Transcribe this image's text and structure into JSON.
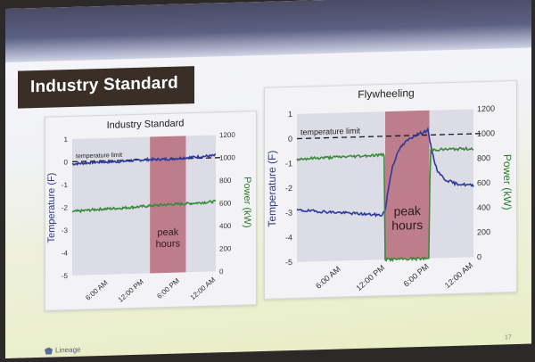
{
  "slide": {
    "title": "Industry Standard",
    "logo_text": "Lineage",
    "page_number": "17"
  },
  "chart_data": [
    {
      "type": "line",
      "title": "Industry Standard",
      "ylabel": "Temperature (F)",
      "y2label": "Power (kW)",
      "xticks": [
        "6:00 AM",
        "12:00 PM",
        "6:00 PM",
        "12:00 AM"
      ],
      "ylim": [
        -5,
        1
      ],
      "yticks": [
        "1",
        "0",
        "-1",
        "-2",
        "-3",
        "-4",
        "-5"
      ],
      "y2lim": [
        0,
        1200
      ],
      "y2ticks": [
        "1200",
        "1000",
        "800",
        "600",
        "400",
        "200",
        "0"
      ],
      "threshold_label": "temperature limit",
      "threshold_value": 0,
      "highlight": {
        "label_line1": "peak",
        "label_line2": "hours",
        "x_from": 13,
        "x_to": 19
      },
      "series": [
        {
          "axis": "left",
          "color": "#2b3aa0",
          "x": [
            0,
            4,
            8,
            12,
            16,
            20,
            24
          ],
          "values": [
            -0.1,
            -0.05,
            -0.05,
            0,
            0,
            0.05,
            0.1
          ]
        },
        {
          "axis": "right",
          "color": "#3a8a3a",
          "x": [
            0,
            4,
            8,
            12,
            16,
            20,
            24
          ],
          "values": [
            560,
            575,
            580,
            590,
            600,
            605,
            615
          ]
        }
      ],
      "grid": false
    },
    {
      "type": "line",
      "title": "Flywheeling",
      "ylabel": "Temperature (F)",
      "y2label": "Power (kW)",
      "xticks": [
        "6:00 AM",
        "12:00 PM",
        "6:00 PM",
        "12:00 AM"
      ],
      "ylim": [
        -5,
        1
      ],
      "yticks": [
        "1",
        "0",
        "-1",
        "-2",
        "-3",
        "-4",
        "-5"
      ],
      "y2lim": [
        0,
        1200
      ],
      "y2ticks": [
        "1200",
        "1000",
        "800",
        "600",
        "400",
        "200",
        "0"
      ],
      "threshold_label": "temperature limit",
      "threshold_value": 0,
      "highlight": {
        "label_line1": "peak",
        "label_line2": "hours",
        "x_from": 12,
        "x_to": 18
      },
      "series": [
        {
          "axis": "left",
          "color": "#2b3aa0",
          "x": [
            0,
            4,
            8,
            11.5,
            12,
            12.5,
            13,
            14,
            15,
            16,
            17,
            17.8,
            18.3,
            19,
            20,
            21.5,
            24
          ],
          "values": [
            -2.9,
            -3.0,
            -3.1,
            -3.2,
            -3.0,
            -2.0,
            -1.2,
            -0.5,
            -0.2,
            0,
            0.1,
            0.2,
            -0.6,
            -1.4,
            -1.8,
            -2.0,
            -2.1
          ]
        },
        {
          "axis": "right",
          "color": "#3a8a3a",
          "x": [
            0,
            4,
            8,
            11.9,
            12,
            18,
            18.1,
            20,
            24
          ],
          "values": [
            835,
            840,
            845,
            850,
            0,
            0,
            880,
            880,
            880
          ]
        }
      ],
      "grid": false
    }
  ]
}
